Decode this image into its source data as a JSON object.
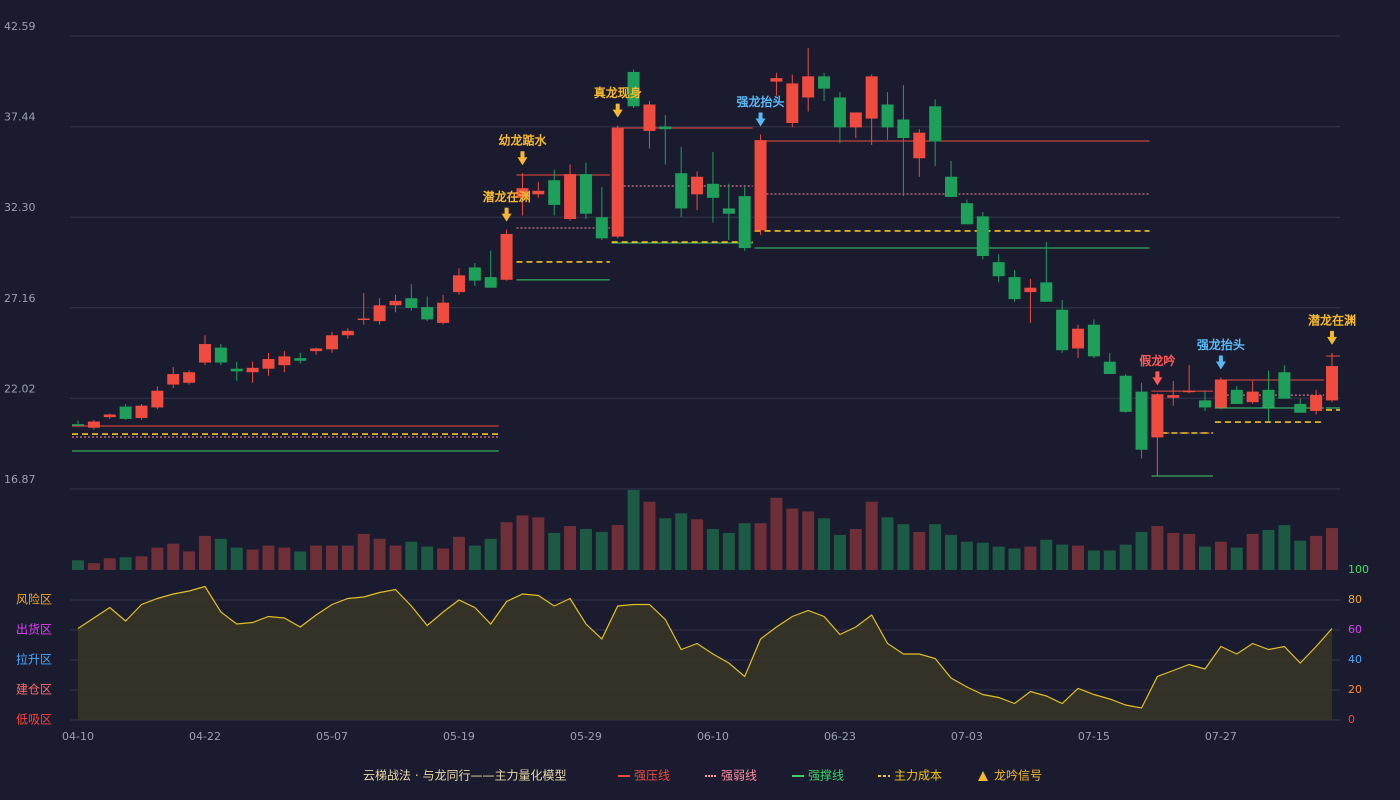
{
  "chart_data": {
    "type": "candlestick",
    "categories": [
      "04-10",
      null,
      null,
      null,
      null,
      null,
      null,
      null,
      "04-22",
      null,
      null,
      null,
      null,
      null,
      null,
      null,
      "05-07",
      null,
      null,
      null,
      null,
      null,
      null,
      null,
      "05-19",
      null,
      null,
      null,
      null,
      null,
      null,
      null,
      "05-29",
      null,
      null,
      null,
      null,
      null,
      null,
      null,
      "06-10",
      null,
      null,
      null,
      null,
      null,
      null,
      null,
      "06-23",
      null,
      null,
      null,
      null,
      null,
      null,
      null,
      "07-03",
      null,
      null,
      null,
      null,
      null,
      null,
      null,
      "07-15",
      null,
      null,
      null,
      null,
      null,
      null,
      null,
      "07-27",
      null,
      null,
      null,
      null,
      null,
      null,
      null
    ],
    "open": [
      20.55,
      20.35,
      20.95,
      21.55,
      20.9,
      21.5,
      22.8,
      22.9,
      24.05,
      24.9,
      23.7,
      23.5,
      23.7,
      23.9,
      24.3,
      24.7,
      24.8,
      25.6,
      26.5,
      26.4,
      27.3,
      27.7,
      27.2,
      26.3,
      28.05,
      29.45,
      28.9,
      28.75,
      33.4,
      33.6,
      34.4,
      32.2,
      34.75,
      32.3,
      31.2,
      40.55,
      37.2,
      37.45,
      34.8,
      33.6,
      34.2,
      32.8,
      33.5,
      31.55,
      40.0,
      37.65,
      39.1,
      40.3,
      39.1,
      37.4,
      37.9,
      38.7,
      37.85,
      35.65,
      38.6,
      34.6,
      33.1,
      32.35,
      29.75,
      28.9,
      28.05,
      28.6,
      27.05,
      24.85,
      26.2,
      24.1,
      23.3,
      22.4,
      19.8,
      22.05,
      22.4,
      21.9,
      21.5,
      22.5,
      21.8,
      22.5,
      23.5,
      21.7,
      21.3,
      21.9
    ],
    "high": [
      20.75,
      20.8,
      21.15,
      21.7,
      21.7,
      22.7,
      23.8,
      23.6,
      25.6,
      25.1,
      24.1,
      24.1,
      24.6,
      24.7,
      24.6,
      24.9,
      25.8,
      26.0,
      28.0,
      27.7,
      27.9,
      28.5,
      27.8,
      27.9,
      29.4,
      29.7,
      30.4,
      31.6,
      34.8,
      34.3,
      35.0,
      35.3,
      35.4,
      34.0,
      37.5,
      40.7,
      38.9,
      38.1,
      36.3,
      34.9,
      36.0,
      34.2,
      34.0,
      37.0,
      40.5,
      40.4,
      41.9,
      40.5,
      39.4,
      38.2,
      40.4,
      39.4,
      39.8,
      37.3,
      39.0,
      35.5,
      33.3,
      32.6,
      30.2,
      29.3,
      28.8,
      30.9,
      27.6,
      26.2,
      26.5,
      24.6,
      23.4,
      22.9,
      22.3,
      23.0,
      23.9,
      22.4,
      23.2,
      22.7,
      23.0,
      23.6,
      23.9,
      22.0,
      22.5,
      24.6
    ],
    "low": [
      20.45,
      20.25,
      20.85,
      20.8,
      20.8,
      21.4,
      22.6,
      22.8,
      23.9,
      23.9,
      23.0,
      22.9,
      23.3,
      23.5,
      24.0,
      24.5,
      24.6,
      25.4,
      26.2,
      26.2,
      26.9,
      27.0,
      26.4,
      26.2,
      27.9,
      28.4,
      28.3,
      28.7,
      32.4,
      33.4,
      32.4,
      32.1,
      32.2,
      31.0,
      31.1,
      38.5,
      36.2,
      35.3,
      32.3,
      32.7,
      32.0,
      31.0,
      30.4,
      31.3,
      39.2,
      37.4,
      38.3,
      38.9,
      36.5,
      36.8,
      36.4,
      36.7,
      33.5,
      34.6,
      35.2,
      33.5,
      31.9,
      29.9,
      28.6,
      27.5,
      26.3,
      27.5,
      24.6,
      24.3,
      24.3,
      23.4,
      21.2,
      18.6,
      17.6,
      21.6,
      22.3,
      21.3,
      21.4,
      21.7,
      21.7,
      20.7,
      22.0,
      21.2,
      21.1,
      21.8
    ],
    "close": [
      20.5,
      20.7,
      21.1,
      20.85,
      21.6,
      22.45,
      23.4,
      23.5,
      25.1,
      24.05,
      23.55,
      23.75,
      24.25,
      24.4,
      24.15,
      24.85,
      25.6,
      25.85,
      26.55,
      27.3,
      27.55,
      27.15,
      26.5,
      27.45,
      29.0,
      28.7,
      28.3,
      31.35,
      33.95,
      33.8,
      33.0,
      34.75,
      32.5,
      31.1,
      37.35,
      38.6,
      38.7,
      37.3,
      32.8,
      34.6,
      33.4,
      32.5,
      30.55,
      36.68,
      40.2,
      39.9,
      40.3,
      39.6,
      37.4,
      38.25,
      40.3,
      37.4,
      36.8,
      37.1,
      36.6,
      33.45,
      31.9,
      30.1,
      28.95,
      27.65,
      28.3,
      27.5,
      24.75,
      25.97,
      24.4,
      23.4,
      21.25,
      19.1,
      22.25,
      22.2,
      22.45,
      21.5,
      23.06,
      21.7,
      22.4,
      21.5,
      22.0,
      21.2,
      22.2,
      23.85
    ],
    "up_color": "#ef4b3f",
    "down_color": "#1fa05a",
    "ylim": [
      16.87,
      42.59
    ],
    "yticks": [
      16.87,
      22.02,
      27.16,
      {
        "value": 32.3,
        "label": "32.30"
      },
      37.44,
      42.59
    ],
    "grid": true,
    "volume": [
      10,
      7,
      12,
      13,
      14,
      23,
      27,
      19,
      35,
      32,
      23,
      21,
      25,
      23,
      19,
      25,
      25,
      25,
      37,
      32,
      25,
      29,
      24,
      22,
      34,
      25,
      32,
      49,
      56,
      54,
      38,
      45,
      42,
      39,
      46,
      82,
      70,
      53,
      58,
      52,
      42,
      38,
      48,
      48,
      74,
      63,
      60,
      53,
      36,
      42,
      70,
      54,
      47,
      39,
      47,
      36,
      29,
      28,
      24,
      22,
      24,
      31,
      26,
      25,
      20,
      20,
      26,
      39,
      45,
      38,
      37,
      24,
      29,
      23,
      37,
      41,
      46,
      30,
      35,
      43
    ],
    "levels": [
      {
        "from": 0,
        "to": 26,
        "values": [
          20.45,
          19.82,
          19.03,
          19.99
        ]
      },
      {
        "from": 28,
        "to": 33,
        "values": [
          34.7,
          31.69,
          28.74,
          29.76
        ]
      },
      {
        "from": 34,
        "to": 42,
        "values": [
          37.37,
          34.07,
          30.84,
          30.89
        ]
      },
      {
        "from": 43,
        "to": 67,
        "values": [
          36.63,
          33.62,
          30.55,
          31.52
        ]
      },
      {
        "from": 68,
        "to": 71,
        "values": [
          22.43,
          20.05,
          17.61,
          20.05
        ]
      },
      {
        "from": 72,
        "to": 78,
        "values": [
          23.06,
          22.2,
          21.47,
          20.67
        ]
      },
      {
        "from": 79,
        "to": 79,
        "values": [
          24.42,
          null,
          21.47,
          21.36
        ]
      }
    ],
    "signals": [
      {
        "index": 27,
        "text": "潜龙在渊",
        "color": "#f5b82e"
      },
      {
        "index": 28,
        "text": "幼龙踮水",
        "color": "#f5b82e"
      },
      {
        "index": 34,
        "text": "真龙现身",
        "color": "#f5b82e"
      },
      {
        "index": 43,
        "text": "强龙抬头",
        "color": "#5ab8f5"
      },
      {
        "index": 68,
        "text": "假龙吟",
        "color": "#ff5a5a"
      },
      {
        "index": 72,
        "text": "强龙抬头",
        "color": "#5ab8f5"
      },
      {
        "index": 79,
        "text": "潜龙在渊",
        "color": "#f5b82e"
      }
    ],
    "indicator": {
      "values": [
        61,
        68,
        75,
        66,
        77,
        81,
        84,
        86,
        89,
        72,
        64,
        65,
        69,
        68,
        62,
        70,
        77,
        81,
        82,
        85,
        87,
        76,
        63,
        72,
        80,
        75,
        64,
        79,
        84,
        83,
        76,
        81,
        64,
        54,
        76,
        77,
        77,
        67,
        47,
        51,
        44,
        38,
        29,
        54,
        62,
        69,
        73,
        69,
        57,
        62,
        70,
        51,
        44,
        44,
        41,
        28,
        22,
        17,
        15,
        11,
        19,
        16,
        11,
        21,
        17,
        14,
        10,
        8,
        29,
        33,
        37,
        34,
        49,
        44,
        51,
        47,
        49,
        38,
        49,
        61
      ],
      "ylim": [
        0,
        100
      ],
      "yticks": [
        0,
        20,
        40,
        60,
        80,
        100
      ],
      "tick_colors": [
        "#ff4040",
        "#ff8a3d",
        "#4aa8ff",
        "#e040fb",
        "#f5a623",
        "#3fe060"
      ],
      "zones": [
        {
          "label": "风险区",
          "value": 80,
          "color": "#f5a623"
        },
        {
          "label": "出货区",
          "value": 60,
          "color": "#e040fb"
        },
        {
          "label": "拉升区",
          "value": 40,
          "color": "#4aa8ff"
        },
        {
          "label": "建仓区",
          "value": 20,
          "color": "#ff6b6b"
        },
        {
          "label": "低吸区",
          "value": 0,
          "color": "#ff4040"
        }
      ],
      "line_color": "#e0c020",
      "fill_color": "#3a3524"
    },
    "legend": {
      "title": "云梯战法 · 与龙同行——主力量化模型",
      "items": [
        {
          "name": "强压线",
          "color": "#ef4b3f",
          "dash": "none"
        },
        {
          "name": "强弱线",
          "color": "#ff8fa0",
          "dash": "2 2"
        },
        {
          "name": "强撑线",
          "color": "#3fcf6a",
          "dash": "none"
        },
        {
          "name": "主力成本",
          "color": "#f5c518",
          "dash": "6 4"
        },
        {
          "name": "龙吟信号",
          "color": "#f5b82e",
          "dash": "none"
        }
      ]
    }
  }
}
